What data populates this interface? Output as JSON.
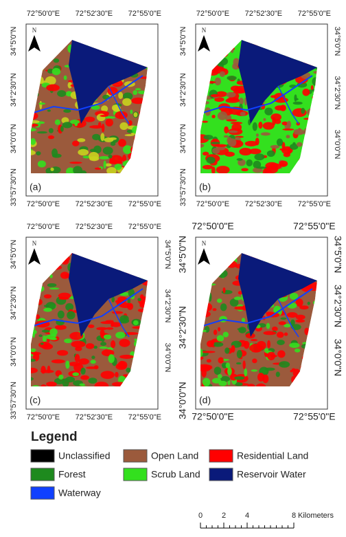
{
  "panels": [
    {
      "label": "(a)",
      "north": "N",
      "top": [
        "72°50'0\"E",
        "72°52'30\"E",
        "72°55'0\"E"
      ],
      "bottom": [
        "72°50'0\"E",
        "72°52'30\"E",
        "72°55'0\"E"
      ],
      "left": [
        "34°5'0\"N",
        "34°2'30\"N",
        "34°0'0\"N",
        "33°57'30\"N"
      ],
      "right": []
    },
    {
      "label": "(b)",
      "north": "N",
      "top": [
        "72°50'0\"E",
        "72°52'30\"E",
        "72°55'0\"E"
      ],
      "bottom": [
        "72°50'0\"E",
        "72°52'30\"E",
        "72°55'0\"E"
      ],
      "left": [
        "34°5'0\"N",
        "34°2'30\"N",
        "34°0'0\"N",
        "33°57'30\"N"
      ],
      "right": [
        "34°5'0\"N",
        "34°2'30\"N",
        "34°0'0\"N"
      ]
    },
    {
      "label": "(c)",
      "north": "N",
      "top": [
        "72°50'0\"E",
        "72°52'30\"E",
        "72°55'0\"E"
      ],
      "bottom": [
        "72°50'0\"E",
        "72°52'30\"E",
        "72°55'0\"E"
      ],
      "left": [
        "34°5'0\"N",
        "34°2'30\"N",
        "34°0'0\"N",
        "33°57'30\"N"
      ],
      "right": [
        "34°5'0\"N",
        "34°2'30\"N",
        "34°0'0\"N"
      ]
    },
    {
      "label": "(d)",
      "north": "N",
      "top": [
        "72°50'0\"E",
        "72°55'0\"E"
      ],
      "bottom": [
        "72°50'0\"E",
        "72°55'0\"E"
      ],
      "left": [
        "34°5'0\"N",
        "34°2'30\"N",
        "34°0'0\"N"
      ],
      "right": [
        "34°5'0\"N",
        "34°2'30\"N",
        "34°0'0\"N"
      ]
    }
  ],
  "legend": {
    "title": "Legend",
    "items": [
      {
        "label": "Unclassified",
        "color": "#000000"
      },
      {
        "label": "Open Land",
        "color": "#9b5a3c"
      },
      {
        "label": "Residential Land",
        "color": "#ff0000"
      },
      {
        "label": "Forest",
        "color": "#1e8a1e"
      },
      {
        "label": "Scrub Land",
        "color": "#33e01e"
      },
      {
        "label": "Reservoir Water",
        "color": "#0a1a7a"
      },
      {
        "label": "Waterway",
        "color": "#1040ff"
      }
    ]
  },
  "scale_bar": {
    "ticks": [
      0,
      2,
      4,
      8
    ],
    "unit": "Kilometers"
  }
}
